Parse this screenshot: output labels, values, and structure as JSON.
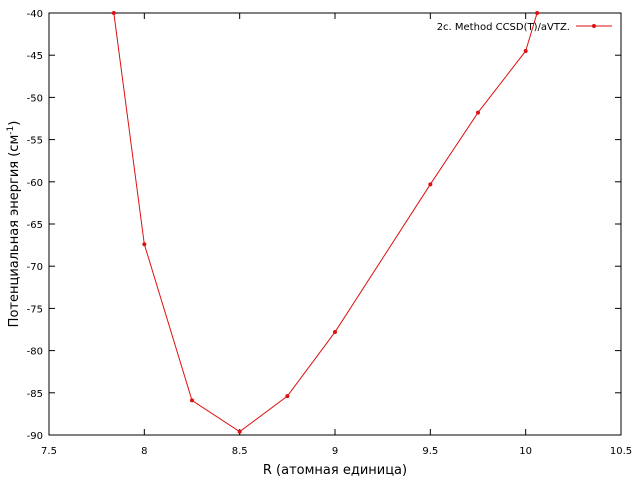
{
  "chart_data": {
    "type": "line",
    "xlabel": "R (атомная единица)",
    "ylabel": {
      "text": "Потенциальная энергия (см",
      "sup": "-1",
      "end": ")"
    },
    "series": [
      {
        "name": "2c. Method CCSD(T)/aVTZ.",
        "color": "#dd1111",
        "x": [
          7.84,
          8.0,
          8.25,
          8.5,
          8.75,
          9.0,
          9.5,
          9.75,
          10.0,
          10.06
        ],
        "values": [
          -40,
          -67.4,
          -85.9,
          -89.6,
          -85.4,
          -77.8,
          -60.3,
          -51.8,
          -44.5,
          -40
        ]
      }
    ],
    "xlim": [
      7.5,
      10.5
    ],
    "xticks": [
      7.5,
      8,
      8.5,
      9,
      9.5,
      10,
      10.5
    ],
    "ylim": [
      -90,
      -40
    ],
    "yticks": [
      -40,
      -45,
      -50,
      -55,
      -60,
      -65,
      -70,
      -75,
      -80,
      -85,
      -90
    ],
    "legend": "top-right"
  }
}
